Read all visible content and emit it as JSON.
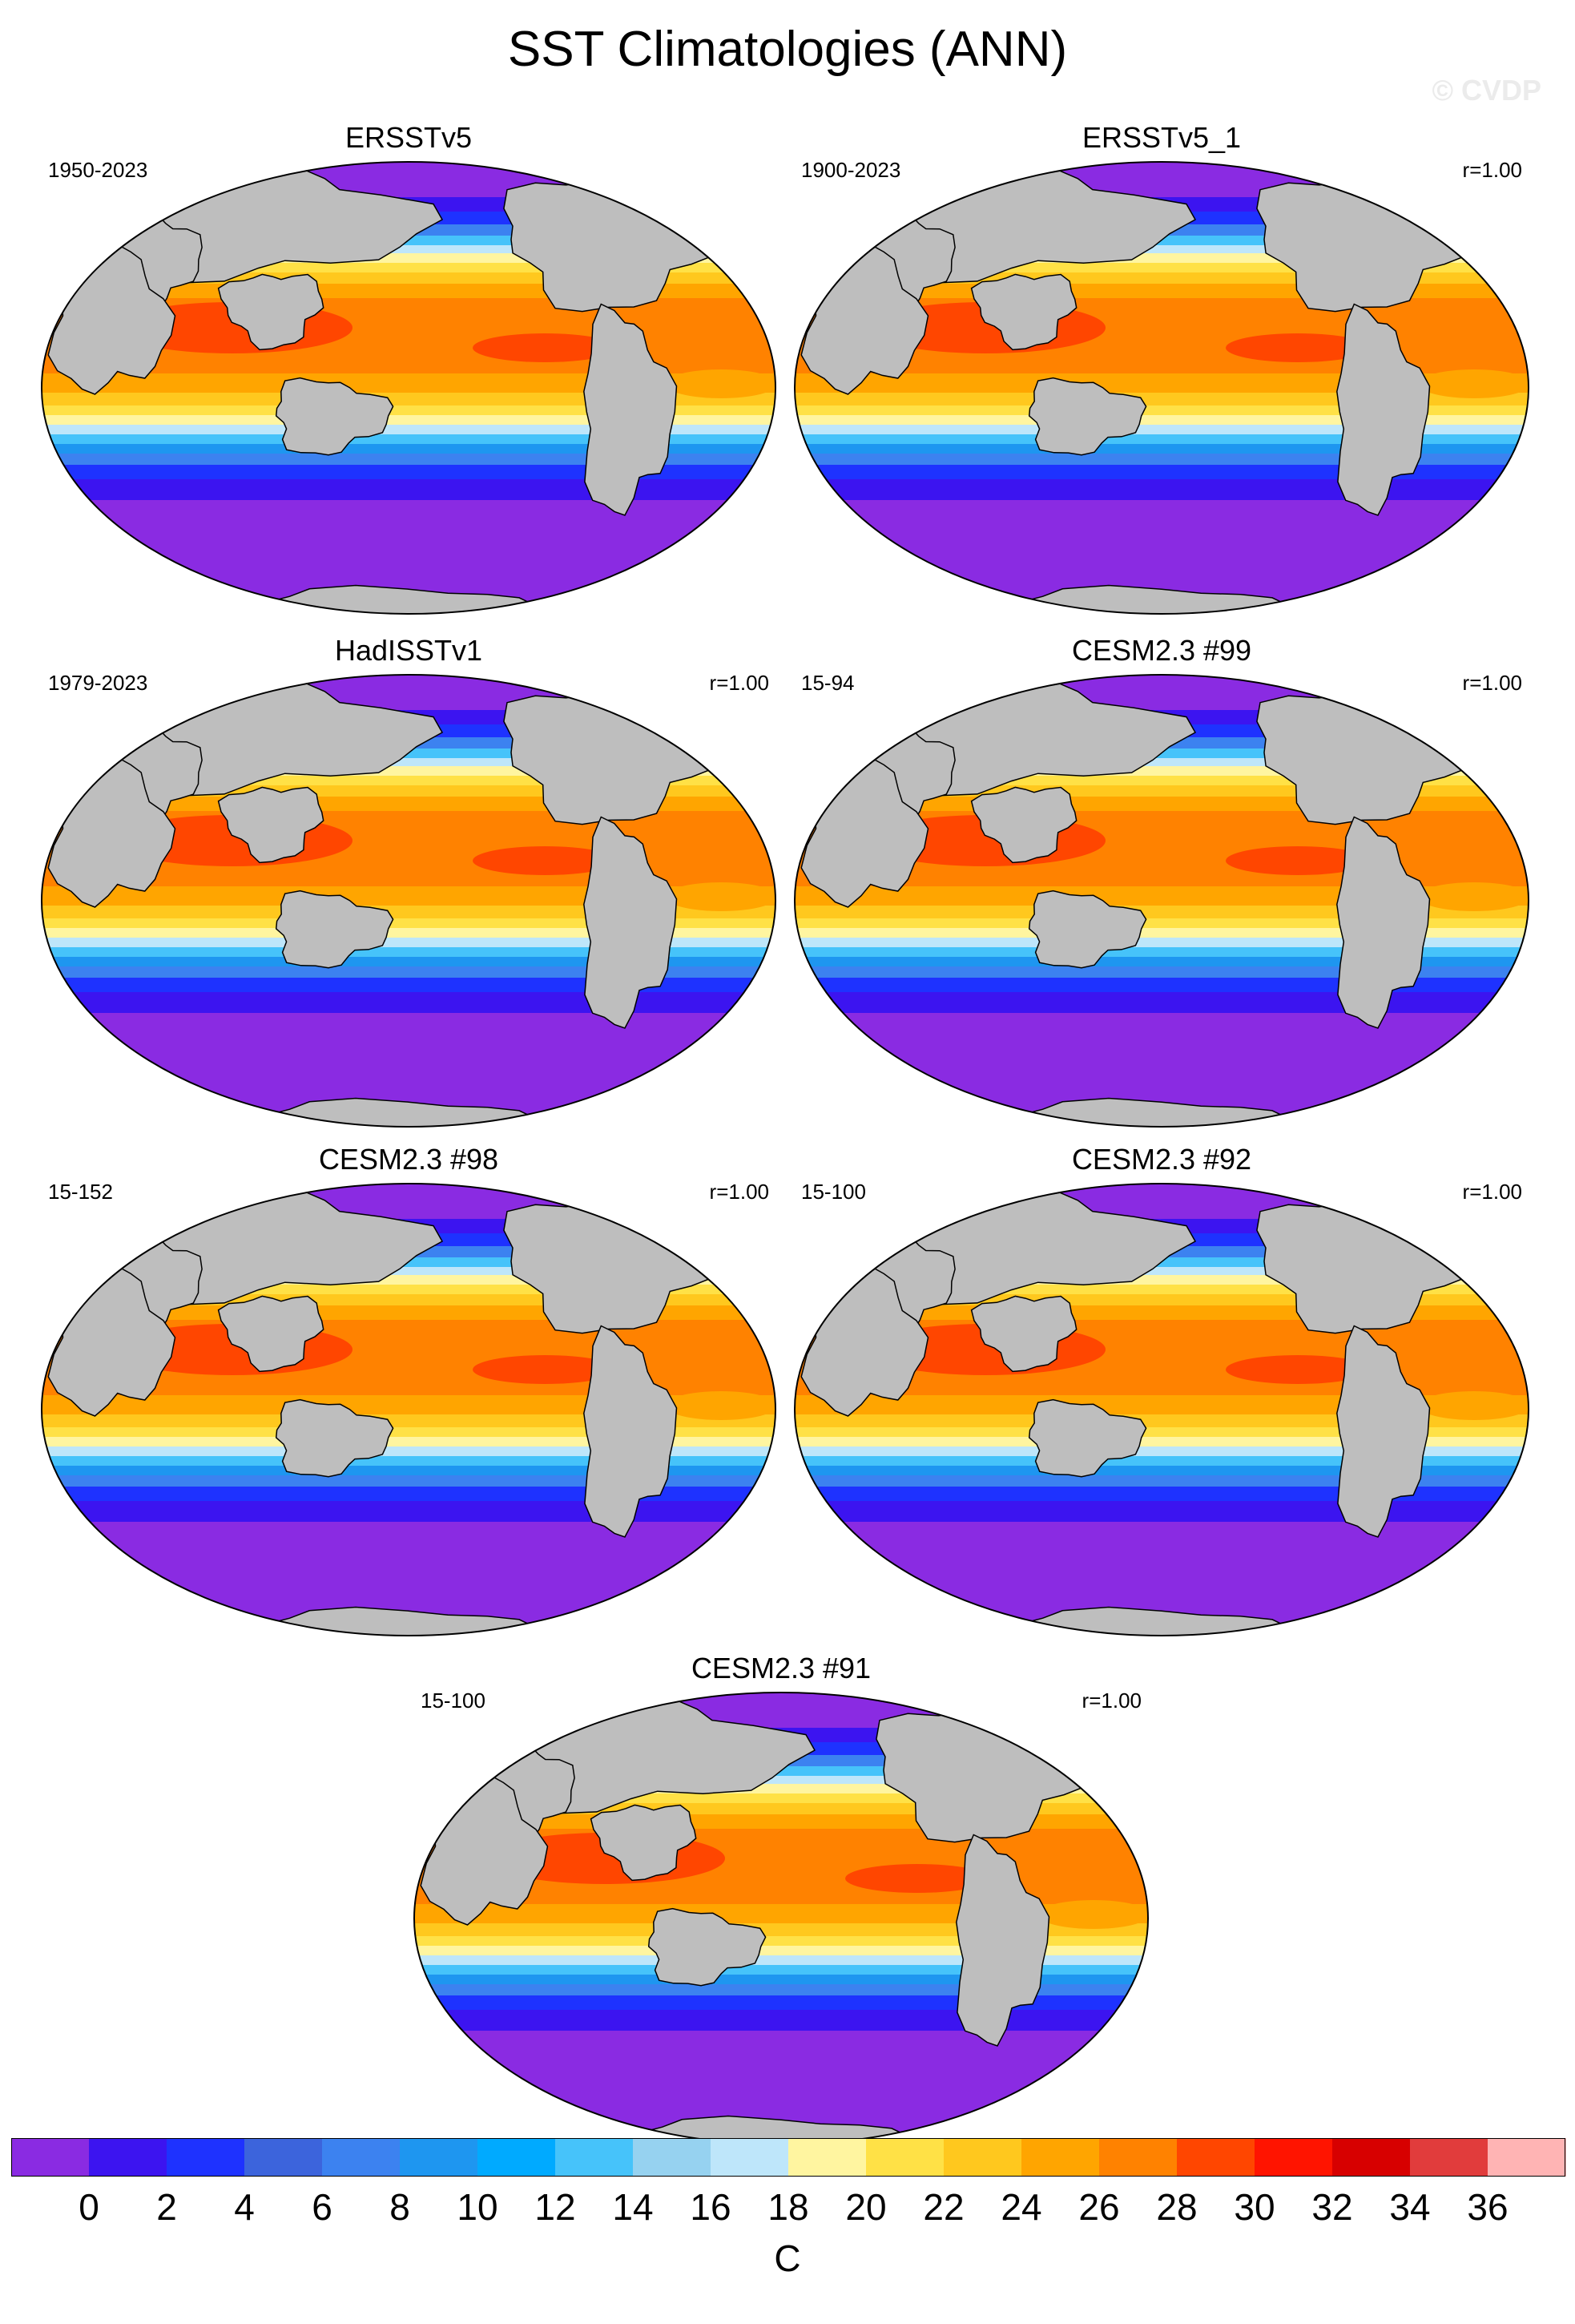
{
  "title": "SST Climatologies (ANN)",
  "watermark": "© CVDP",
  "panels": [
    {
      "name": "ERSSTv5",
      "period": "1950-2023",
      "corr": ""
    },
    {
      "name": "ERSSTv5_1",
      "period": "1900-2023",
      "corr": "r=1.00"
    },
    {
      "name": "HadISSTv1",
      "period": "1979-2023",
      "corr": "r=1.00"
    },
    {
      "name": "CESM2.3 #99",
      "period": "15-94",
      "corr": "r=1.00"
    },
    {
      "name": "CESM2.3 #98",
      "period": "15-152",
      "corr": "r=1.00"
    },
    {
      "name": "CESM2.3 #92",
      "period": "15-100",
      "corr": "r=1.00"
    },
    {
      "name": "CESM2.3 #91",
      "period": "15-100",
      "corr": "r=1.00"
    }
  ],
  "colorbar": {
    "ticks": [
      "0",
      "2",
      "4",
      "6",
      "8",
      "10",
      "12",
      "14",
      "16",
      "18",
      "20",
      "22",
      "24",
      "26",
      "28",
      "30",
      "32",
      "34",
      "36"
    ],
    "unit": "C",
    "colors": [
      "#8a2be2",
      "#3c14f0",
      "#1e32ff",
      "#3c64dc",
      "#3c82f0",
      "#1e96f0",
      "#00aaff",
      "#46c3fa",
      "#96d2f0",
      "#bee6fa",
      "#fff5a0",
      "#ffe146",
      "#ffc81e",
      "#ffa500",
      "#ff8200",
      "#ff4600",
      "#ff1400",
      "#d70000",
      "#e13c3c",
      "#ffb4b4"
    ]
  },
  "map_colors": {
    "land": "#bebebe",
    "outline": "#000000"
  }
}
